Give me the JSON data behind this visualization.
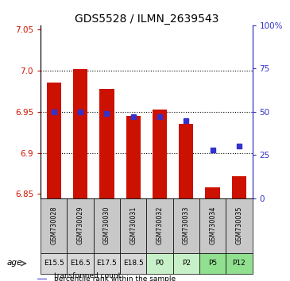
{
  "title": "GDS5528 / ILMN_2639543",
  "samples": [
    "GSM730028",
    "GSM730029",
    "GSM730030",
    "GSM730031",
    "GSM730032",
    "GSM730033",
    "GSM730034",
    "GSM730035"
  ],
  "age_labels": [
    "E15.5",
    "E16.5",
    "E17.5",
    "E18.5",
    "P0",
    "P2",
    "P5",
    "P12"
  ],
  "sample_bg_colors": [
    "#c8c8c8",
    "#c8c8c8",
    "#c8c8c8",
    "#c8c8c8",
    "#c8c8c8",
    "#c8c8c8",
    "#c8c8c8",
    "#c8c8c8"
  ],
  "age_colors": [
    "#d8d8d8",
    "#d8d8d8",
    "#d8d8d8",
    "#d8d8d8",
    "#c8f0c8",
    "#c8f0c8",
    "#90e090",
    "#90e090"
  ],
  "transformed_counts": [
    6.985,
    7.002,
    6.978,
    6.945,
    6.953,
    6.935,
    6.858,
    6.872
  ],
  "percentile_ranks": [
    50,
    50,
    49,
    47,
    47,
    45,
    28,
    30
  ],
  "ylim_left": [
    6.845,
    7.055
  ],
  "ylim_right": [
    0,
    100
  ],
  "yticks_left": [
    6.85,
    6.9,
    6.95,
    7.0,
    7.05
  ],
  "yticks_right": [
    0,
    25,
    50,
    75,
    100
  ],
  "bar_color": "#cc1100",
  "dot_color": "#3333cc",
  "bar_bottom": 6.845,
  "bar_width": 0.55,
  "grid_ticks": [
    6.9,
    6.95,
    7.0
  ],
  "title_fontsize": 10,
  "tick_fontsize": 7.5,
  "age_label": "age",
  "legend_items": [
    "transformed count",
    "percentile rank within the sample"
  ]
}
